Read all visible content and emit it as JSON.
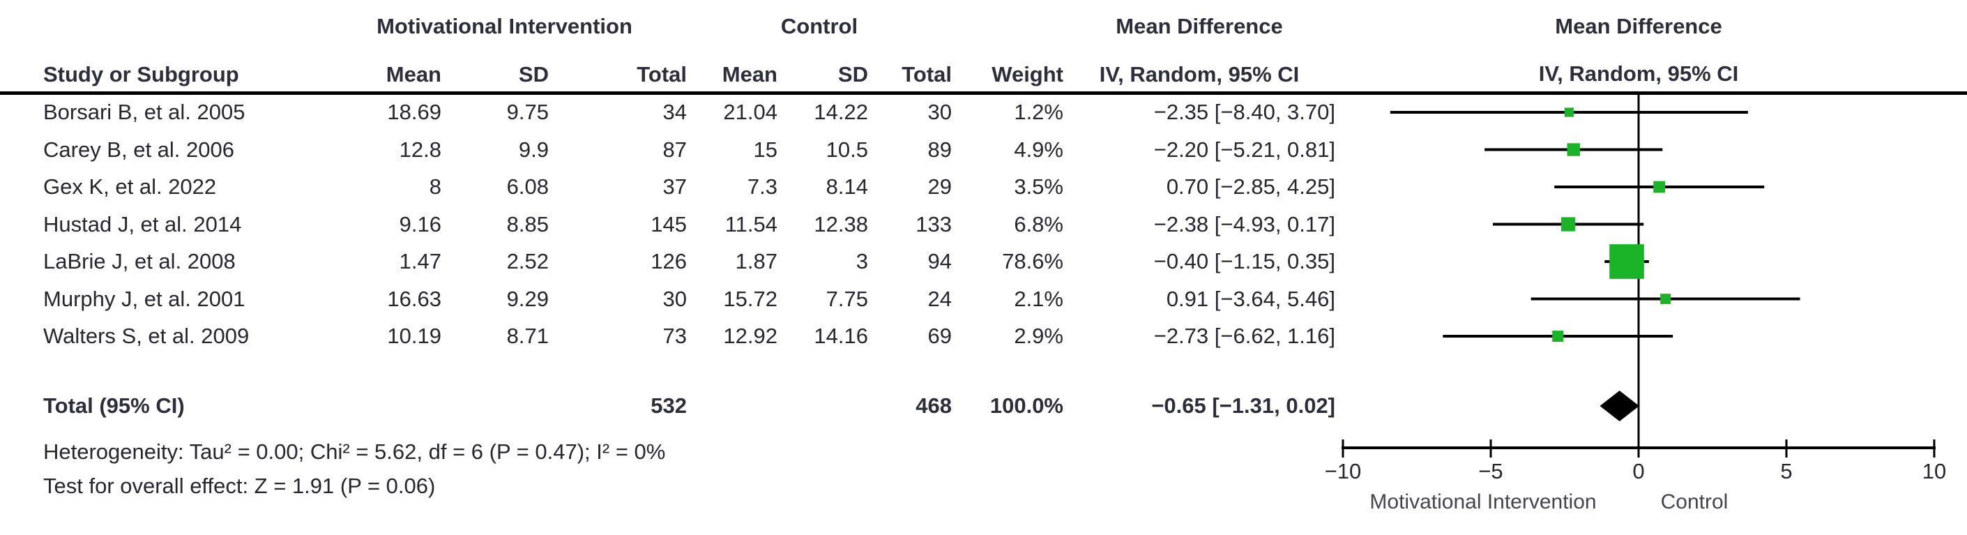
{
  "table": {
    "group_headers": {
      "intervention": "Motivational Intervention",
      "control": "Control",
      "mean_difference": "Mean Difference"
    },
    "col_headers": {
      "study": "Study or Subgroup",
      "mi_mean": "Mean",
      "mi_sd": "SD",
      "mi_total": "Total",
      "c_mean": "Mean",
      "c_sd": "SD",
      "c_total": "Total",
      "weight": "Weight",
      "ci": "IV, Random, 95% CI"
    },
    "rows": [
      {
        "study": "Borsari B, et al. 2005",
        "mi_mean": "18.69",
        "mi_sd": "9.75",
        "mi_total": "34",
        "c_mean": "21.04",
        "c_sd": "14.22",
        "c_total": "30",
        "weight": "1.2%",
        "ci": "−2.35 [−8.40, 3.70]"
      },
      {
        "study": "Carey B, et al. 2006",
        "mi_mean": "12.8",
        "mi_sd": "9.9",
        "mi_total": "87",
        "c_mean": "15",
        "c_sd": "10.5",
        "c_total": "89",
        "weight": "4.9%",
        "ci": "−2.20 [−5.21, 0.81]"
      },
      {
        "study": "Gex K, et al. 2022",
        "mi_mean": "8",
        "mi_sd": "6.08",
        "mi_total": "37",
        "c_mean": "7.3",
        "c_sd": "8.14",
        "c_total": "29",
        "weight": "3.5%",
        "ci": "0.70 [−2.85, 4.25]"
      },
      {
        "study": "Hustad J, et al. 2014",
        "mi_mean": "9.16",
        "mi_sd": "8.85",
        "mi_total": "145",
        "c_mean": "11.54",
        "c_sd": "12.38",
        "c_total": "133",
        "weight": "6.8%",
        "ci": "−2.38 [−4.93, 0.17]"
      },
      {
        "study": "LaBrie J, et al. 2008",
        "mi_mean": "1.47",
        "mi_sd": "2.52",
        "mi_total": "126",
        "c_mean": "1.87",
        "c_sd": "3",
        "c_total": "94",
        "weight": "78.6%",
        "ci": "−0.40 [−1.15, 0.35]"
      },
      {
        "study": "Murphy J, et al. 2001",
        "mi_mean": "16.63",
        "mi_sd": "9.29",
        "mi_total": "30",
        "c_mean": "15.72",
        "c_sd": "7.75",
        "c_total": "24",
        "weight": "2.1%",
        "ci": "0.91 [−3.64, 5.46]"
      },
      {
        "study": "Walters S, et al. 2009",
        "mi_mean": "10.19",
        "mi_sd": "8.71",
        "mi_total": "73",
        "c_mean": "12.92",
        "c_sd": "14.16",
        "c_total": "69",
        "weight": "2.9%",
        "ci": "−2.73 [−6.62, 1.16]"
      }
    ],
    "total_row": {
      "label": "Total (95% CI)",
      "mi_total": "532",
      "c_total": "468",
      "weight": "100.0%",
      "ci": "−0.65 [−1.31, 0.02]"
    }
  },
  "footer": {
    "heterogeneity": "Heterogeneity: Tau² = 0.00; Chi² = 5.62, df = 6 (P = 0.47); I² = 0%",
    "overall_effect": "Test for overall effect: Z = 1.91 (P = 0.06)"
  },
  "plot_header": {
    "line1": "Mean Difference",
    "line2": "IV, Random, 95% CI"
  },
  "chart_data": {
    "type": "forest_plot",
    "title": "Mean Difference, IV, Random, 95% CI",
    "xlim": [
      -10,
      10
    ],
    "x_ticks": [
      {
        "value": -10,
        "label": "−10"
      },
      {
        "value": -5,
        "label": "−5"
      },
      {
        "value": 0,
        "label": "0"
      },
      {
        "value": 5,
        "label": "5"
      },
      {
        "value": 10,
        "label": "10"
      }
    ],
    "favours_left_label": "Motivational Intervention",
    "favours_right_label": "Control",
    "studies": [
      {
        "name": "Borsari B, et al. 2005",
        "md": -2.35,
        "lo": -8.4,
        "hi": 3.7,
        "weight_pct": 1.2
      },
      {
        "name": "Carey B, et al. 2006",
        "md": -2.2,
        "lo": -5.21,
        "hi": 0.81,
        "weight_pct": 4.9
      },
      {
        "name": "Gex K, et al. 2022",
        "md": 0.7,
        "lo": -2.85,
        "hi": 4.25,
        "weight_pct": 3.5
      },
      {
        "name": "Hustad J, et al. 2014",
        "md": -2.38,
        "lo": -4.93,
        "hi": 0.17,
        "weight_pct": 6.8
      },
      {
        "name": "LaBrie J, et al. 2008",
        "md": -0.4,
        "lo": -1.15,
        "hi": 0.35,
        "weight_pct": 78.6
      },
      {
        "name": "Murphy J, et al. 2001",
        "md": 0.91,
        "lo": -3.64,
        "hi": 5.46,
        "weight_pct": 2.1
      },
      {
        "name": "Walters S, et al. 2009",
        "md": -2.73,
        "lo": -6.62,
        "hi": 1.16,
        "weight_pct": 2.9
      }
    ],
    "total": {
      "md": -0.65,
      "lo": -1.31,
      "hi": 0.02
    },
    "heterogeneity": {
      "tau2": 0.0,
      "chi2": 5.62,
      "df": 6,
      "p": 0.47,
      "i2_pct": 0
    },
    "overall_effect": {
      "z": 1.91,
      "p": 0.06
    },
    "colors": {
      "marker": "#1BB327",
      "diamond": "#000000",
      "lines": "#000000",
      "text": "#26262e",
      "favours_text": "#44444e"
    }
  }
}
